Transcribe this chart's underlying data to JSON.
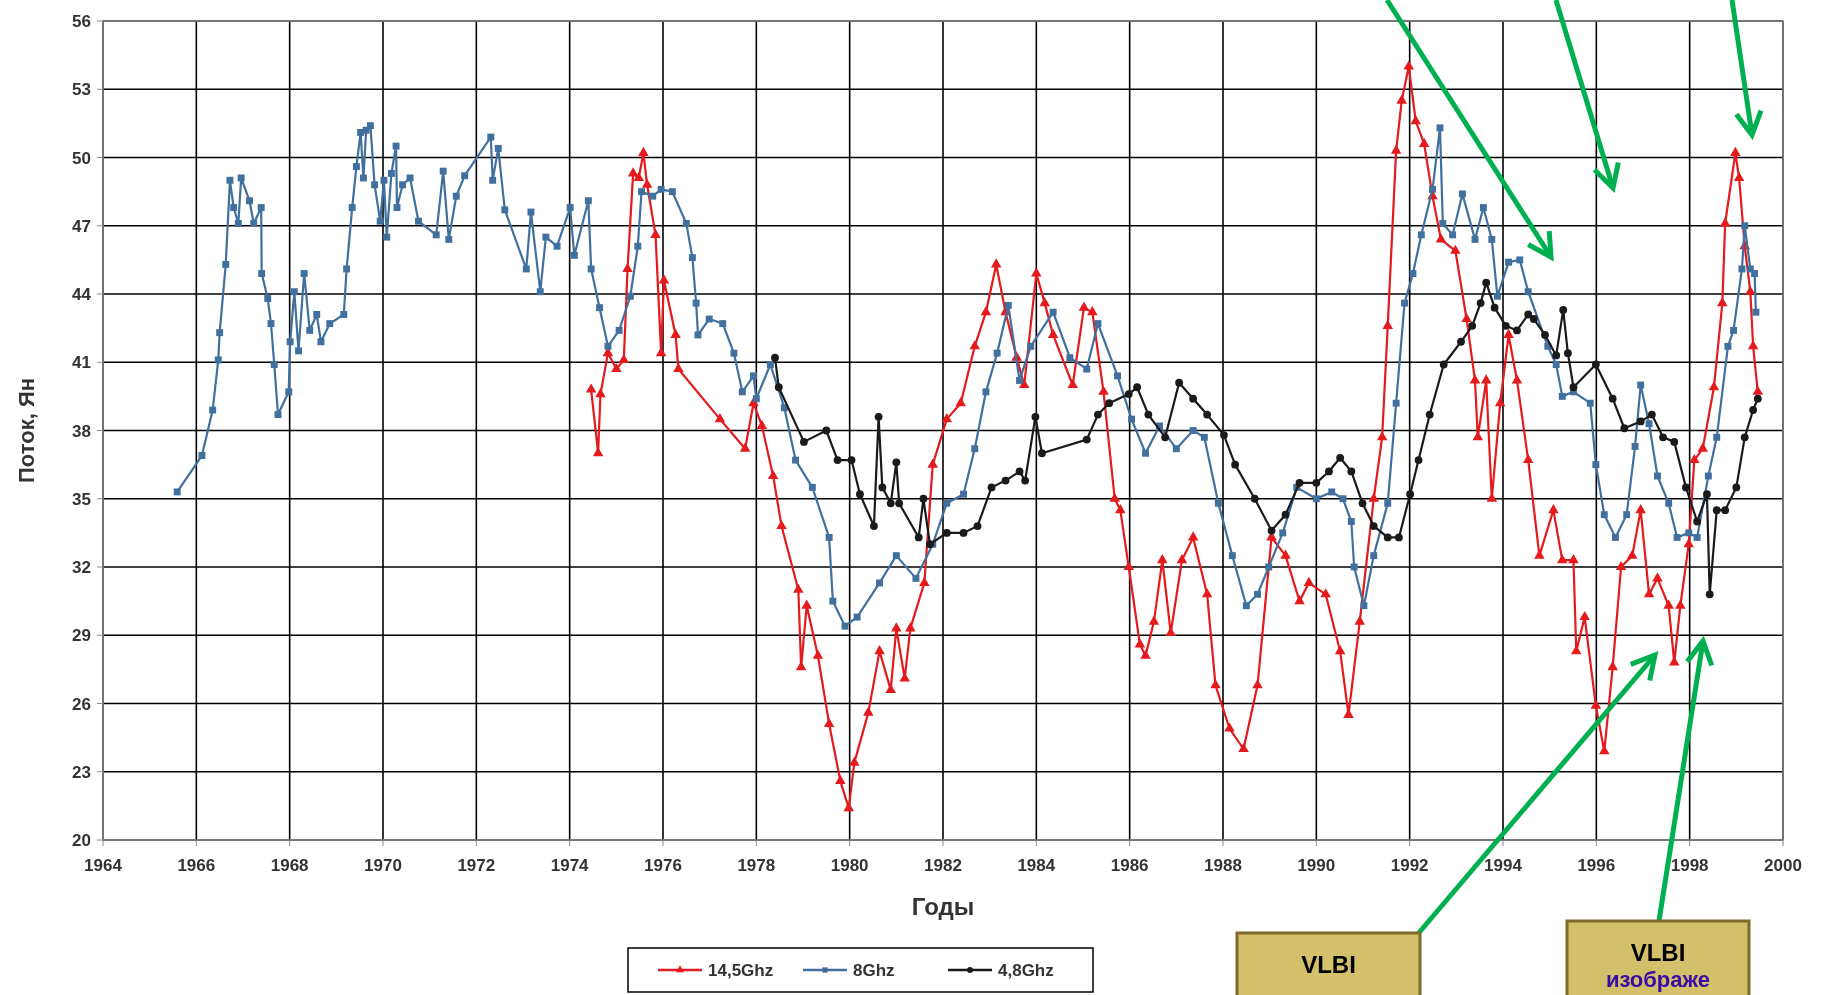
{
  "chart_data": {
    "type": "line",
    "xlabel": "Годы",
    "ylabel": "Поток, Ян",
    "xlim": [
      1964,
      2000
    ],
    "xticks": [
      1964,
      1966,
      1968,
      1970,
      1972,
      1974,
      1976,
      1978,
      1980,
      1982,
      1984,
      1986,
      1988,
      1990,
      1992,
      1994,
      1996,
      1998,
      2000
    ],
    "ylim": [
      20,
      56
    ],
    "yticks": [
      20,
      23,
      26,
      29,
      32,
      35,
      38,
      41,
      44,
      47,
      50,
      53,
      56
    ],
    "grid": true,
    "legend": "bottom",
    "line_style": "solid",
    "annotations": [
      "VLBI",
      "VLBI изображе"
    ],
    "series": [
      {
        "name": "14,5Ghz",
        "color": "#e41a1c",
        "marker": "triangle",
        "x": [
          1974.46,
          1974.61,
          1974.66,
          1974.82,
          1975.0,
          1975.16,
          1975.24,
          1975.36,
          1975.48,
          1975.58,
          1975.66,
          1975.84,
          1975.96,
          1976.02,
          1976.27,
          1976.33,
          1977.22,
          1977.76,
          1977.94,
          1978.12,
          1978.36,
          1978.54,
          1978.9,
          1978.96,
          1979.08,
          1979.32,
          1979.56,
          1979.8,
          1979.98,
          1980.1,
          1980.4,
          1980.64,
          1980.88,
          1981.0,
          1981.18,
          1981.3,
          1981.6,
          1981.78,
          1982.08,
          1982.38,
          1982.68,
          1982.92,
          1983.14,
          1983.34,
          1983.58,
          1983.74,
          1984.0,
          1984.18,
          1984.36,
          1984.78,
          1985.02,
          1985.2,
          1985.44,
          1985.68,
          1985.8,
          1985.98,
          1986.22,
          1986.34,
          1986.52,
          1986.7,
          1986.88,
          1987.12,
          1987.36,
          1987.66,
          1987.84,
          1988.14,
          1988.44,
          1988.74,
          1989.04,
          1989.34,
          1989.64,
          1989.84,
          1990.2,
          1990.51,
          1990.69,
          1990.93,
          1991.23,
          1991.41,
          1991.53,
          1991.71,
          1991.83,
          1991.98,
          1992.13,
          1992.31,
          1992.49,
          1992.67,
          1992.98,
          1993.22,
          1993.4,
          1993.46,
          1993.64,
          1993.76,
          1993.94,
          1994.12,
          1994.3,
          1994.54,
          1994.78,
          1995.08,
          1995.27,
          1995.51,
          1995.57,
          1995.75,
          1995.99,
          1996.17,
          1996.35,
          1996.53,
          1996.77,
          1996.95,
          1997.13,
          1997.31,
          1997.55,
          1997.67,
          1997.8,
          1997.98,
          1998.1,
          1998.28,
          1998.52,
          1998.7,
          1998.76,
          1998.98,
          1999.06,
          1999.18,
          1999.3,
          1999.36,
          1999.46
        ],
        "values": [
          39.8,
          37.0,
          39.6,
          41.4,
          40.7,
          41.1,
          45.1,
          49.3,
          49.1,
          50.2,
          48.8,
          46.6,
          41.4,
          44.6,
          42.2,
          40.7,
          38.5,
          37.2,
          39.2,
          38.2,
          36.0,
          33.8,
          31.0,
          27.6,
          30.3,
          28.1,
          25.1,
          22.6,
          21.4,
          23.4,
          25.6,
          28.3,
          26.6,
          29.3,
          27.1,
          29.3,
          31.3,
          36.5,
          38.5,
          39.2,
          41.7,
          43.2,
          45.3,
          43.2,
          41.2,
          40.0,
          44.9,
          43.6,
          42.2,
          40.0,
          43.4,
          43.2,
          39.7,
          35.0,
          34.5,
          32.0,
          28.6,
          28.1,
          29.6,
          32.3,
          29.1,
          32.3,
          33.3,
          30.8,
          26.8,
          24.9,
          24.0,
          26.8,
          33.3,
          32.5,
          30.5,
          31.3,
          30.8,
          28.3,
          25.5,
          29.6,
          35.0,
          37.7,
          42.6,
          50.3,
          52.5,
          54.0,
          51.6,
          50.6,
          48.3,
          46.4,
          45.9,
          42.9,
          40.2,
          37.7,
          40.2,
          35.0,
          39.2,
          42.2,
          40.2,
          36.7,
          32.5,
          34.5,
          32.3,
          32.3,
          28.3,
          29.8,
          25.9,
          23.9,
          27.6,
          32.0,
          32.5,
          34.5,
          30.8,
          31.5,
          30.3,
          27.8,
          30.3,
          33.0,
          36.7,
          37.2,
          39.9,
          43.6,
          47.1,
          50.2,
          49.1,
          46.1,
          44.1,
          41.7,
          39.7
        ]
      },
      {
        "name": "8Ghz",
        "color": "#41709e",
        "marker": "square",
        "x": [
          1965.59,
          1966.12,
          1966.35,
          1966.47,
          1966.5,
          1966.63,
          1966.72,
          1966.8,
          1966.9,
          1966.96,
          1967.14,
          1967.23,
          1967.39,
          1967.4,
          1967.53,
          1967.6,
          1967.67,
          1967.75,
          1967.98,
          1968.01,
          1968.1,
          1968.19,
          1968.31,
          1968.43,
          1968.58,
          1968.67,
          1968.86,
          1969.16,
          1969.22,
          1969.34,
          1969.43,
          1969.52,
          1969.58,
          1969.64,
          1969.73,
          1969.82,
          1969.94,
          1970.02,
          1970.08,
          1970.18,
          1970.28,
          1970.3,
          1970.42,
          1970.58,
          1970.76,
          1971.14,
          1971.29,
          1971.41,
          1971.57,
          1971.75,
          1972.31,
          1972.35,
          1972.47,
          1972.61,
          1973.07,
          1973.17,
          1973.37,
          1973.49,
          1973.73,
          1974.01,
          1974.1,
          1974.4,
          1974.46,
          1974.64,
          1974.82,
          1975.06,
          1975.3,
          1975.46,
          1975.54,
          1975.78,
          1975.96,
          1976.2,
          1976.5,
          1976.63,
          1976.71,
          1976.75,
          1976.99,
          1977.28,
          1977.52,
          1977.7,
          1977.94,
          1978.0,
          1978.3,
          1978.6,
          1978.84,
          1979.2,
          1979.56,
          1979.64,
          1979.9,
          1980.16,
          1980.64,
          1981.0,
          1981.42,
          1981.78,
          1982.08,
          1982.44,
          1982.68,
          1982.92,
          1983.16,
          1983.4,
          1983.64,
          1983.88,
          1984.36,
          1984.72,
          1985.08,
          1985.32,
          1985.74,
          1986.04,
          1986.34,
          1986.64,
          1987.0,
          1987.36,
          1987.6,
          1987.9,
          1988.2,
          1988.5,
          1988.74,
          1988.98,
          1989.28,
          1989.58,
          1990.0,
          1990.33,
          1990.57,
          1990.75,
          1990.81,
          1991.02,
          1991.23,
          1991.53,
          1991.71,
          1991.89,
          1992.07,
          1992.25,
          1992.49,
          1992.65,
          1992.71,
          1992.92,
          1993.13,
          1993.4,
          1993.58,
          1993.76,
          1993.88,
          1994.12,
          1994.36,
          1994.54,
          1994.96,
          1995.14,
          1995.27,
          1995.51,
          1995.87,
          1995.99,
          1996.17,
          1996.41,
          1996.65,
          1996.83,
          1996.95,
          1997.13,
          1997.31,
          1997.55,
          1997.73,
          1997.98,
          1998.16,
          1998.4,
          1998.58,
          1998.82,
          1998.94,
          1999.12,
          1999.18,
          1999.3,
          1999.39,
          1999.42
        ],
        "values": [
          35.3,
          36.9,
          38.9,
          41.1,
          42.3,
          45.3,
          49.0,
          47.8,
          47.1,
          49.1,
          48.1,
          47.1,
          47.8,
          44.9,
          43.8,
          42.7,
          40.9,
          38.7,
          39.7,
          41.9,
          44.1,
          41.5,
          44.9,
          42.4,
          43.1,
          41.9,
          42.7,
          43.1,
          45.1,
          47.8,
          49.6,
          51.1,
          49.1,
          51.2,
          51.4,
          48.8,
          47.2,
          49.0,
          46.5,
          49.3,
          50.5,
          47.8,
          48.8,
          49.1,
          47.2,
          46.6,
          49.4,
          46.4,
          48.3,
          49.2,
          50.9,
          49.0,
          50.4,
          47.7,
          45.1,
          47.6,
          44.1,
          46.5,
          46.1,
          47.8,
          45.7,
          48.1,
          45.1,
          43.4,
          41.7,
          42.4,
          43.9,
          46.1,
          48.5,
          48.3,
          48.6,
          48.5,
          47.1,
          45.6,
          43.6,
          42.2,
          42.9,
          42.7,
          41.4,
          39.7,
          40.4,
          39.4,
          40.9,
          39.0,
          36.7,
          35.5,
          33.3,
          30.5,
          29.4,
          29.8,
          31.3,
          32.5,
          31.5,
          33.0,
          34.8,
          35.2,
          37.2,
          39.7,
          41.4,
          43.5,
          40.2,
          41.7,
          43.2,
          41.2,
          40.7,
          42.7,
          40.4,
          38.5,
          37.0,
          38.2,
          37.2,
          38.0,
          37.7,
          34.8,
          32.5,
          30.3,
          30.8,
          32.0,
          33.5,
          35.5,
          35.0,
          35.3,
          35.0,
          34.0,
          32.0,
          30.3,
          32.5,
          34.8,
          39.2,
          43.6,
          44.9,
          46.6,
          48.6,
          51.3,
          47.1,
          46.6,
          48.4,
          46.4,
          47.8,
          46.4,
          43.9,
          45.4,
          45.5,
          44.1,
          41.7,
          40.9,
          39.5,
          39.7,
          39.2,
          36.5,
          34.3,
          33.3,
          34.3,
          37.3,
          40.0,
          38.3,
          36.0,
          34.8,
          33.3,
          33.5,
          33.3,
          36.0,
          37.7,
          41.7,
          42.4,
          45.1,
          47.0,
          45.1,
          44.9,
          43.2
        ]
      },
      {
        "name": "4,8Ghz",
        "color": "#1a1a1a",
        "marker": "circle",
        "x": [
          1978.4,
          1978.48,
          1979.02,
          1979.5,
          1979.74,
          1980.04,
          1980.22,
          1980.52,
          1980.62,
          1980.7,
          1980.88,
          1981.0,
          1981.06,
          1981.48,
          1981.58,
          1981.72,
          1982.08,
          1982.44,
          1982.74,
          1983.04,
          1983.34,
          1983.64,
          1983.76,
          1983.98,
          1984.12,
          1985.08,
          1985.32,
          1985.56,
          1985.98,
          1986.16,
          1986.4,
          1986.76,
          1987.06,
          1987.36,
          1987.66,
          1988.02,
          1988.26,
          1988.68,
          1989.04,
          1989.34,
          1989.64,
          1990.0,
          1990.27,
          1990.51,
          1990.75,
          1990.99,
          1991.23,
          1991.53,
          1991.77,
          1992.01,
          1992.19,
          1992.43,
          1992.73,
          1993.1,
          1993.34,
          1993.52,
          1993.64,
          1993.82,
          1994.06,
          1994.3,
          1994.54,
          1994.66,
          1994.9,
          1995.14,
          1995.29,
          1995.39,
          1995.51,
          1995.99,
          1996.35,
          1996.6,
          1996.95,
          1997.19,
          1997.43,
          1997.67,
          1997.92,
          1998.16,
          1998.37,
          1998.43,
          1998.58,
          1998.76,
          1999.0,
          1999.18,
          1999.36,
          1999.46
        ],
        "values": [
          41.2,
          39.9,
          37.5,
          38.0,
          36.7,
          36.7,
          35.2,
          33.8,
          38.6,
          35.5,
          34.8,
          36.6,
          34.8,
          33.3,
          35.0,
          33.0,
          33.5,
          33.5,
          33.8,
          35.5,
          35.8,
          36.2,
          35.8,
          38.6,
          37.0,
          37.6,
          38.7,
          39.2,
          39.6,
          39.9,
          38.7,
          37.7,
          40.1,
          39.4,
          38.7,
          37.8,
          36.5,
          35.0,
          33.6,
          34.3,
          35.7,
          35.7,
          36.2,
          36.8,
          36.2,
          34.8,
          33.8,
          33.3,
          33.3,
          35.2,
          36.7,
          38.7,
          40.9,
          41.9,
          42.6,
          43.6,
          44.5,
          43.4,
          42.6,
          42.4,
          43.1,
          42.9,
          42.2,
          41.3,
          43.3,
          41.4,
          39.9,
          40.9,
          39.4,
          38.1,
          38.4,
          38.7,
          37.7,
          37.5,
          35.5,
          34.0,
          35.2,
          30.8,
          34.5,
          34.5,
          35.5,
          37.7,
          38.9,
          39.4
        ]
      }
    ]
  }
}
